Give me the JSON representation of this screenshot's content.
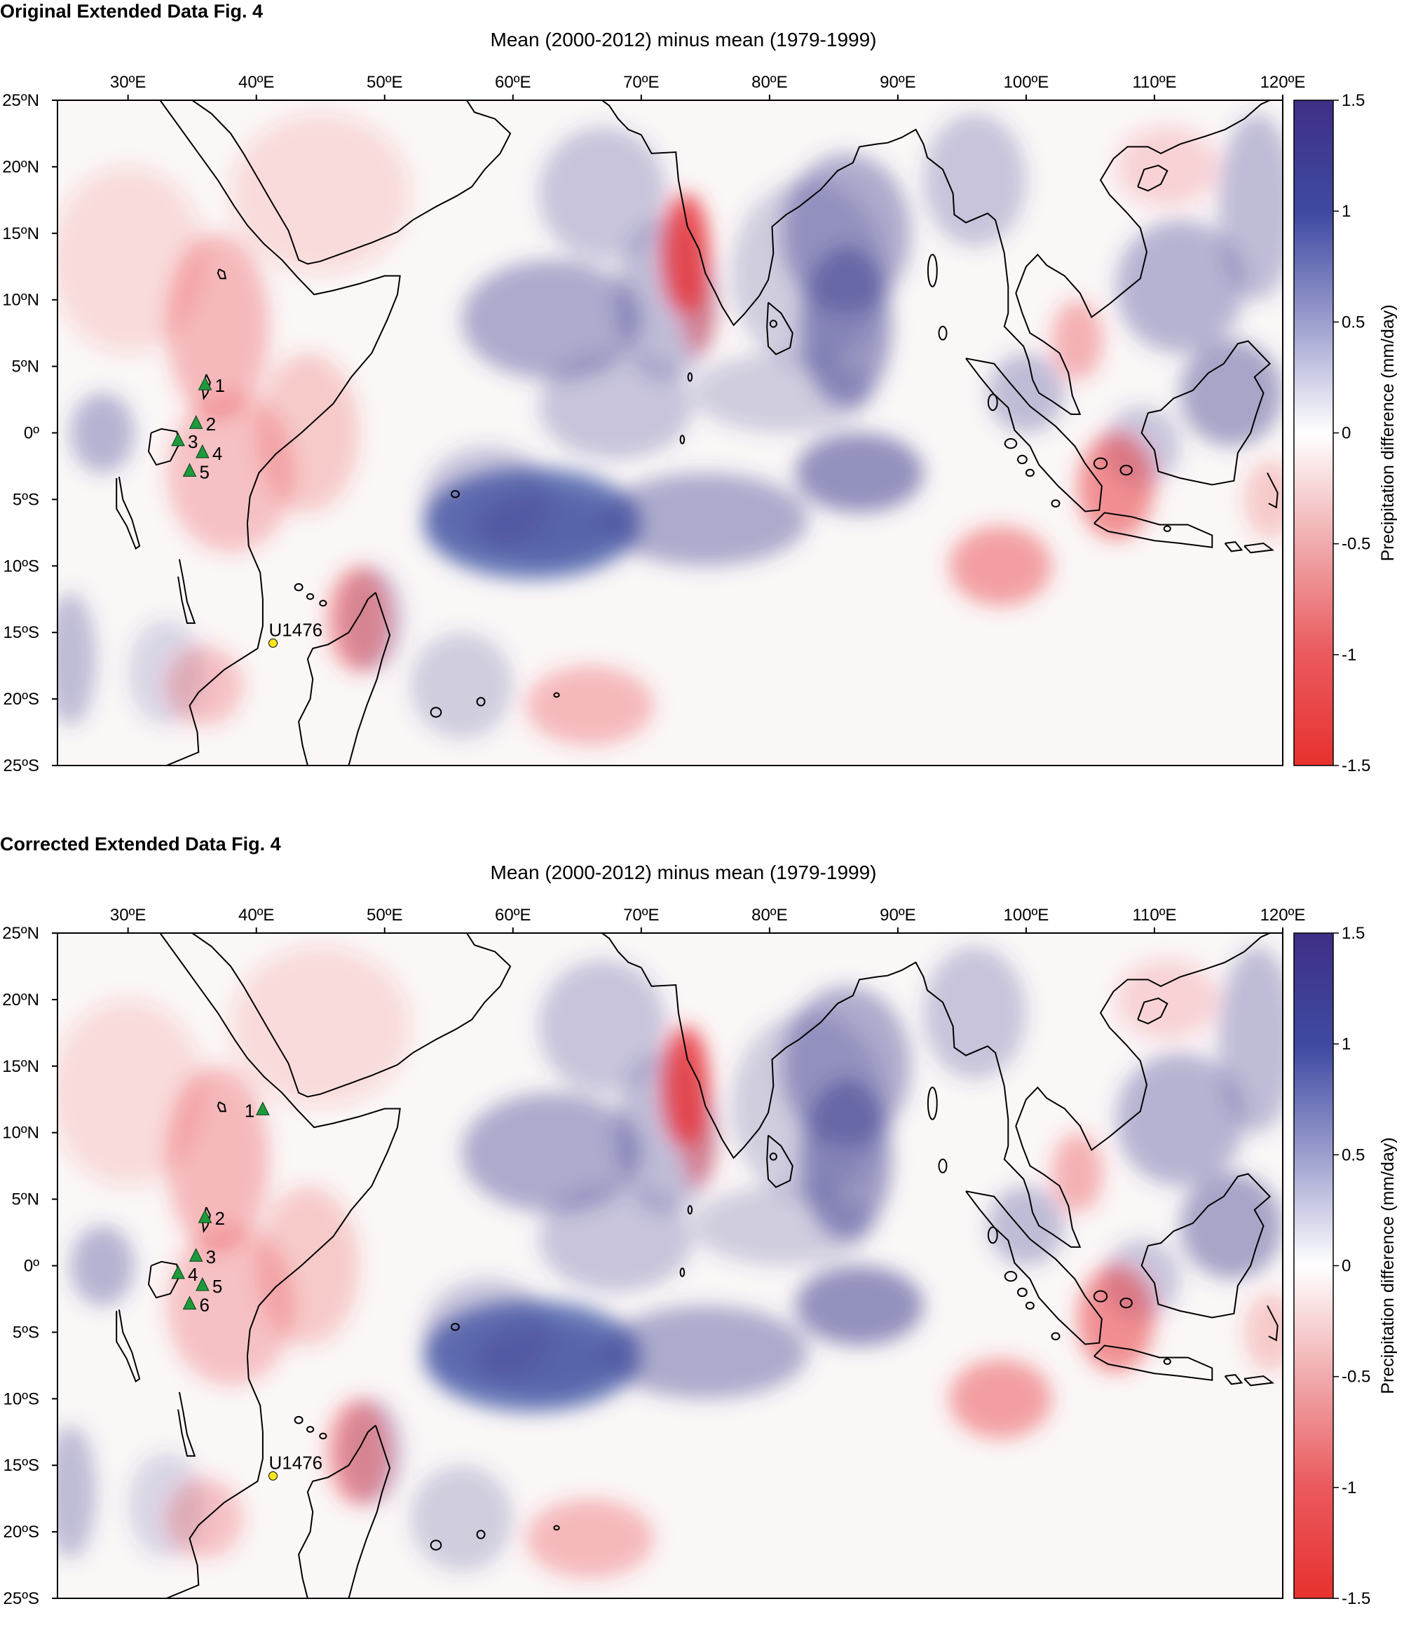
{
  "map_data": {
    "title": "Mean (2000-2012) minus mean (1979-1999)",
    "lon_ticks": [
      "30ºE",
      "40ºE",
      "50ºE",
      "60ºE",
      "70ºE",
      "80ºE",
      "90ºE",
      "100ºE",
      "110ºE",
      "120ºE"
    ],
    "lat_ticks": [
      "25ºN",
      "20ºN",
      "15ºN",
      "10ºN",
      "5ºN",
      "0º",
      "5ºS",
      "10ºS",
      "15ºS",
      "20ºS",
      "25ºS"
    ],
    "colorbar": {
      "label": "Precipitation difference (mm/day)",
      "ticks": [
        "1.5",
        "1",
        "0.5",
        "0",
        "-0.5",
        "-1",
        "-1.5"
      ],
      "min": -1.5,
      "max": 1.5
    },
    "colors": {
      "positive": "#3d3d8f",
      "deep_positive": "#2f4aa0",
      "negative": "#e8343a",
      "neutral": "#ffffff",
      "land_line": "#000000",
      "marker_triangle": "#1d9a3c",
      "marker_core": "#f6e51e"
    },
    "core_site": {
      "label": "U1476",
      "lon": 41.3,
      "lat": -15.8
    }
  },
  "panels": [
    {
      "heading": "Original Extended Data Fig. 4",
      "sites": [
        {
          "label": "1",
          "lon": 36.0,
          "lat": 3.6
        },
        {
          "label": "2",
          "lon": 35.3,
          "lat": 0.7
        },
        {
          "label": "3",
          "lon": 33.9,
          "lat": -0.6
        },
        {
          "label": "4",
          "lon": 35.8,
          "lat": -1.5
        },
        {
          "label": "5",
          "lon": 34.8,
          "lat": -2.9
        }
      ]
    },
    {
      "heading": "Corrected Extended Data Fig. 4",
      "sites": [
        {
          "label": "1",
          "lon": 40.5,
          "lat": 11.7
        },
        {
          "label": "2",
          "lon": 36.0,
          "lat": 3.6
        },
        {
          "label": "3",
          "lon": 35.3,
          "lat": 0.7
        },
        {
          "label": "4",
          "lon": 33.9,
          "lat": -0.6
        },
        {
          "label": "5",
          "lon": 35.8,
          "lat": -1.5
        },
        {
          "label": "6",
          "lon": 34.8,
          "lat": -2.9
        }
      ]
    }
  ]
}
